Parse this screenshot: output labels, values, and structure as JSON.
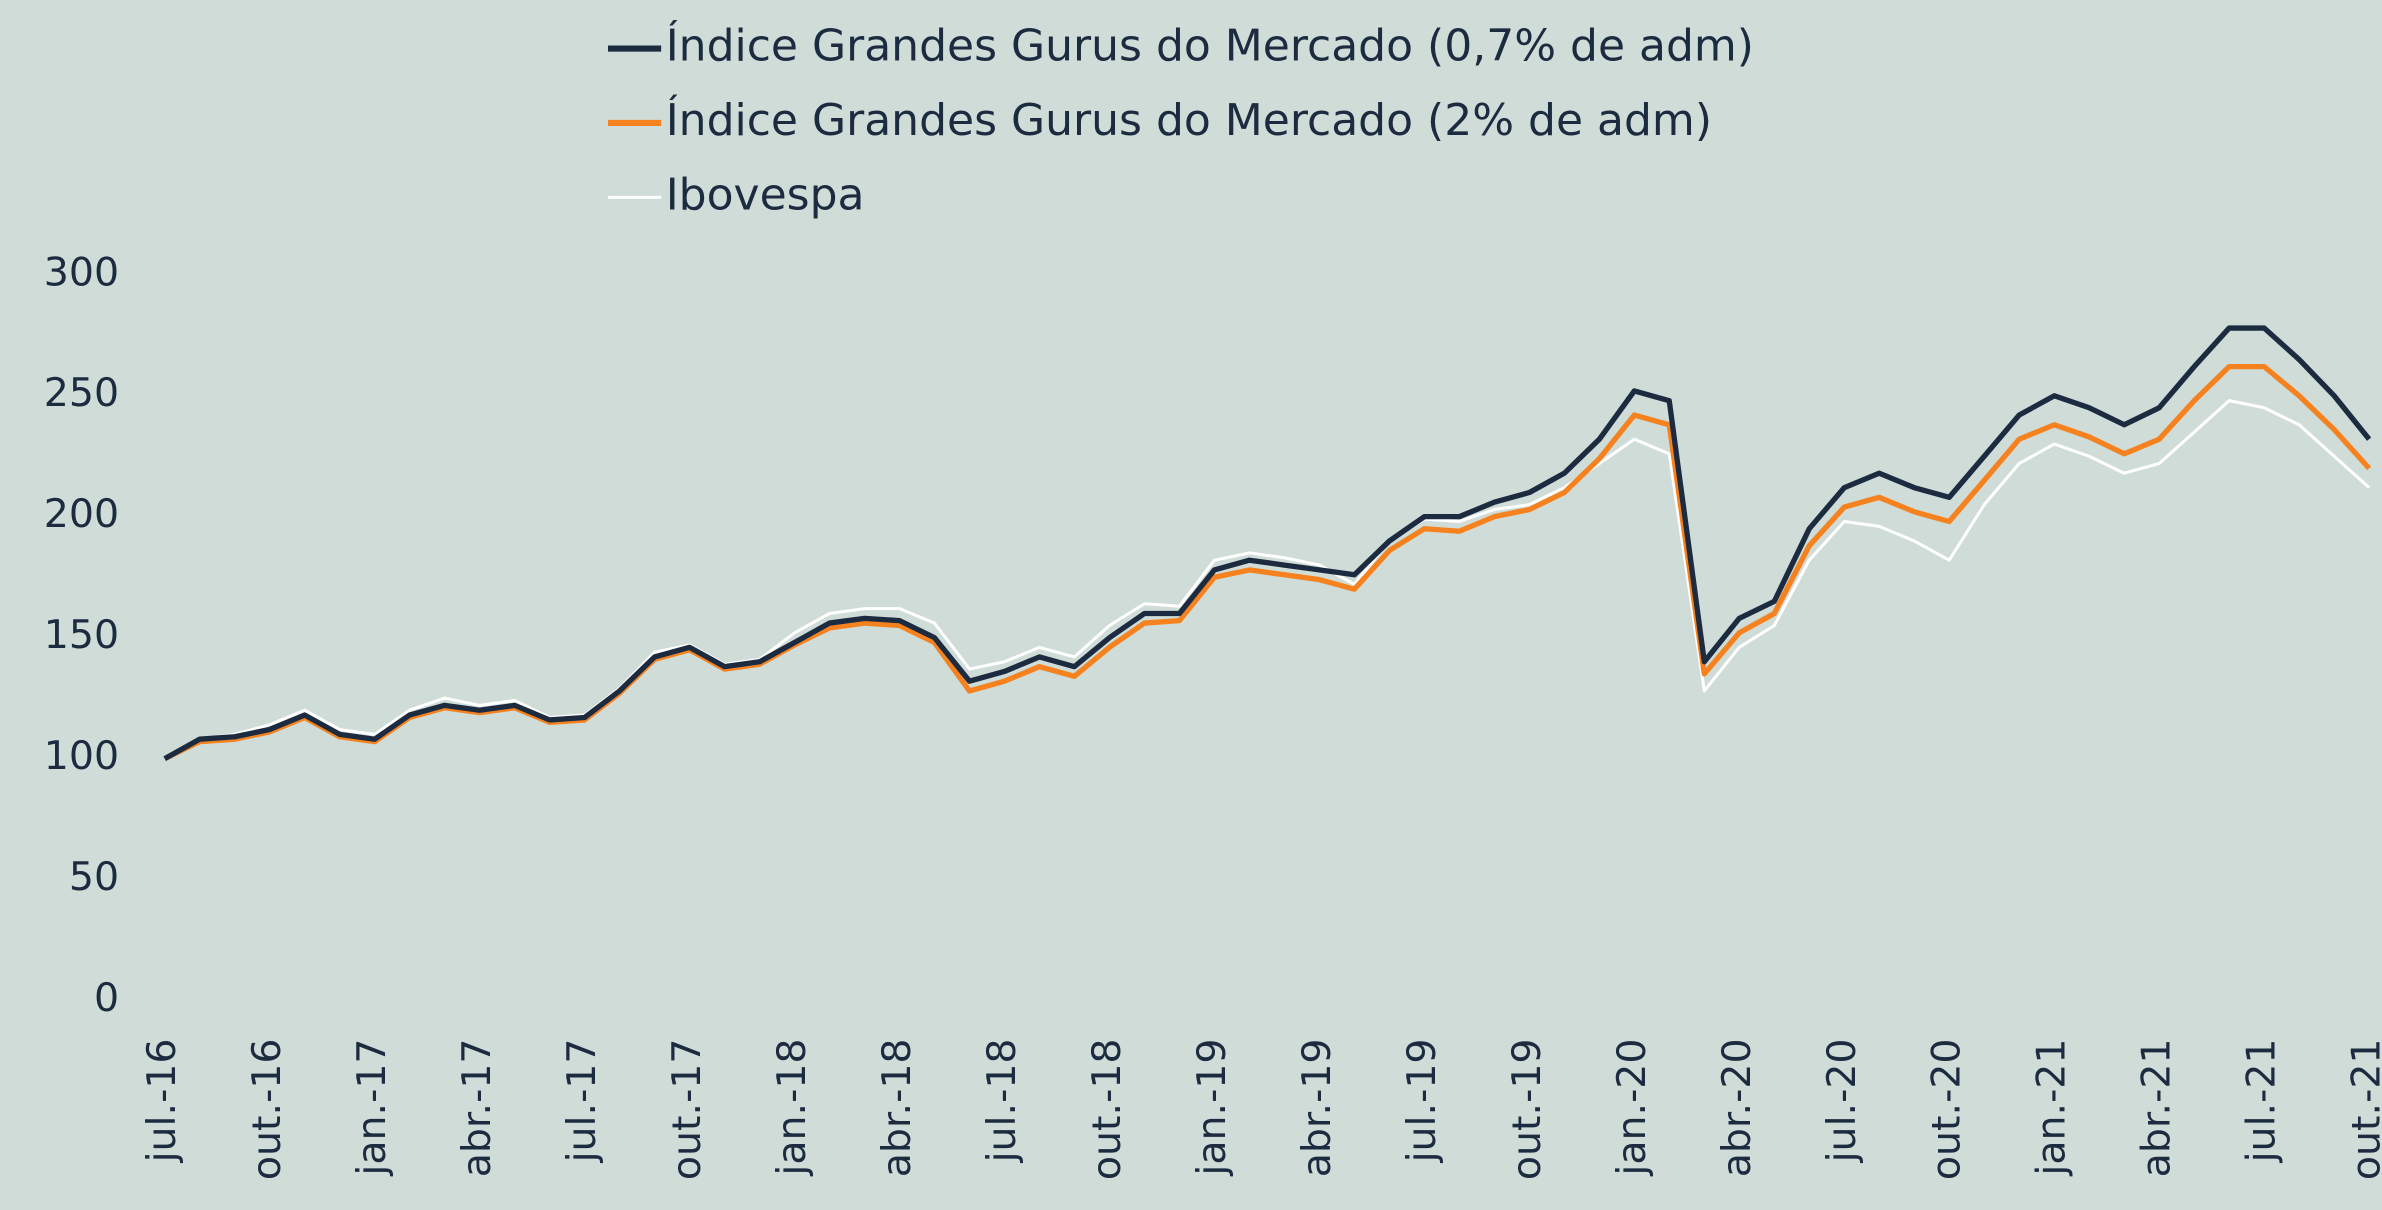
{
  "chart_data": {
    "type": "line",
    "categories": [
      "jul.-16",
      null,
      null,
      "out.-16",
      null,
      null,
      "jan.-17",
      null,
      null,
      "abr.-17",
      null,
      null,
      "jul.-17",
      null,
      null,
      "out.-17",
      null,
      null,
      "jan.-18",
      null,
      null,
      "abr.-18",
      null,
      null,
      "jul.-18",
      null,
      null,
      "out.-18",
      null,
      null,
      "jan.-19",
      null,
      null,
      "abr.-19",
      null,
      null,
      "jul.-19",
      null,
      null,
      "out.-19",
      null,
      null,
      "jan.-20",
      null,
      null,
      "abr.-20",
      null,
      null,
      "jul.-20",
      null,
      null,
      "out.-20",
      null,
      null,
      "jan.-21",
      null,
      null,
      "abr.-21",
      null,
      null,
      "jul.-21",
      null,
      null,
      "out.-21"
    ],
    "series": [
      {
        "name": "Índice Grandes Gurus do Mercado (0,7% de adm)",
        "color": "#1c2b40",
        "values": [
          100,
          108,
          109,
          112,
          118,
          110,
          108,
          118,
          122,
          120,
          122,
          116,
          117,
          128,
          142,
          146,
          138,
          140,
          148,
          156,
          158,
          157,
          150,
          132,
          136,
          142,
          138,
          150,
          160,
          160,
          178,
          182,
          180,
          178,
          176,
          190,
          200,
          200,
          206,
          210,
          218,
          232,
          252,
          248,
          140,
          158,
          165,
          195,
          212,
          218,
          212,
          208,
          225,
          242,
          250,
          245,
          238,
          245,
          262,
          278,
          278,
          265,
          250,
          232
        ]
      },
      {
        "name": "Índice Grandes Gurus do Mercado (2% de adm)",
        "color": "#f5821f",
        "values": [
          100,
          107,
          108,
          111,
          117,
          109,
          107,
          117,
          121,
          119,
          121,
          115,
          116,
          127,
          141,
          145,
          137,
          139,
          147,
          154,
          156,
          155,
          148,
          128,
          132,
          138,
          134,
          146,
          156,
          157,
          175,
          178,
          176,
          174,
          170,
          186,
          195,
          194,
          200,
          203,
          210,
          224,
          242,
          238,
          135,
          152,
          160,
          188,
          204,
          208,
          202,
          198,
          215,
          232,
          238,
          233,
          226,
          232,
          248,
          262,
          262,
          250,
          236,
          220
        ]
      },
      {
        "name": "Ibovespa",
        "color": "#ffffff",
        "values": [
          100,
          108,
          110,
          114,
          120,
          112,
          110,
          120,
          125,
          122,
          124,
          117,
          118,
          129,
          144,
          147,
          139,
          141,
          152,
          160,
          162,
          162,
          156,
          137,
          140,
          146,
          142,
          155,
          164,
          163,
          182,
          185,
          183,
          180,
          172,
          190,
          199,
          198,
          203,
          205,
          212,
          222,
          232,
          226,
          128,
          146,
          155,
          182,
          198,
          196,
          190,
          182,
          205,
          222,
          230,
          225,
          218,
          222,
          235,
          248,
          245,
          238,
          225,
          212
        ]
      }
    ],
    "ylim": [
      0,
      300
    ],
    "yticks": [
      0,
      50,
      100,
      150,
      200,
      250,
      300
    ]
  }
}
